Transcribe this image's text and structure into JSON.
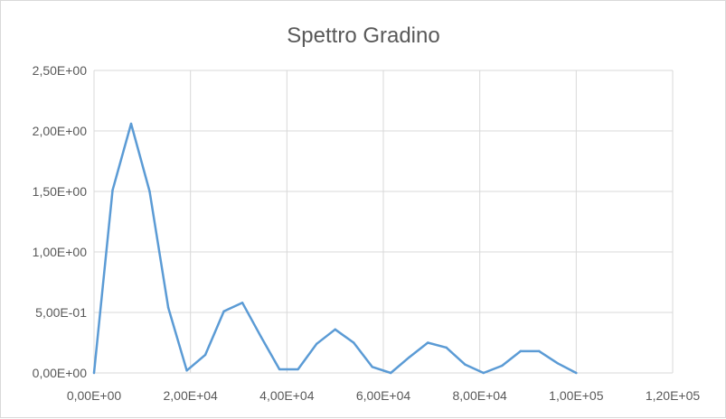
{
  "chart_data": {
    "type": "line",
    "title": "Spettro Gradino",
    "xlabel": "",
    "ylabel": "",
    "xlim": [
      0,
      120000
    ],
    "ylim": [
      0,
      2.5
    ],
    "x_ticks": [
      0,
      20000,
      40000,
      60000,
      80000,
      100000,
      120000
    ],
    "x_tick_labels": [
      "0,00E+00",
      "2,00E+04",
      "4,00E+04",
      "6,00E+04",
      "8,00E+04",
      "1,00E+05",
      "1,20E+05"
    ],
    "y_ticks": [
      0,
      0.5,
      1.0,
      1.5,
      2.0,
      2.5
    ],
    "y_tick_labels": [
      "0,00E+00",
      "5,00E-01",
      "1,00E+00",
      "1,50E+00",
      "2,00E+00",
      "2,50E+00"
    ],
    "grid": true,
    "legend": "none",
    "colors": {
      "series": "#5b9bd5",
      "grid": "#d9d9d9",
      "text": "#595959"
    },
    "series": [
      {
        "x": [
          0,
          3846,
          7692,
          11538,
          15385,
          19231,
          23077,
          26923,
          30769,
          34615,
          38462,
          42308,
          46154,
          50000,
          53846,
          57692,
          61538,
          65385,
          69231,
          73077,
          76923,
          80769,
          84615,
          88462,
          92308,
          96154,
          100000
        ],
        "values": [
          0.0,
          1.51,
          2.06,
          1.5,
          0.54,
          0.02,
          0.15,
          0.51,
          0.58,
          0.3,
          0.03,
          0.03,
          0.24,
          0.36,
          0.25,
          0.05,
          0.0,
          0.13,
          0.25,
          0.21,
          0.07,
          0.0,
          0.06,
          0.18,
          0.18,
          0.08,
          0.0
        ]
      }
    ]
  }
}
